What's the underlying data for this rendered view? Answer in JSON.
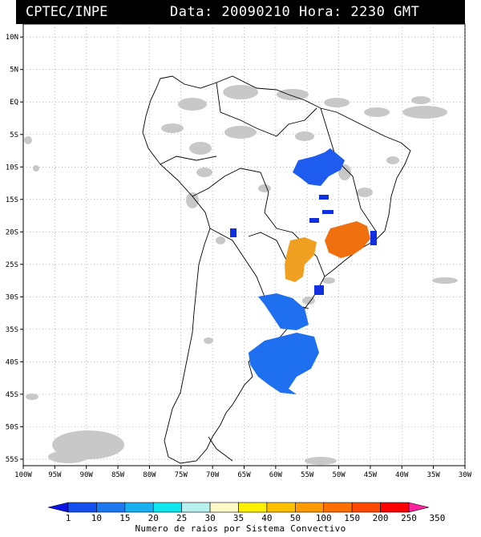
{
  "header": {
    "source": "CPTEC/INPE",
    "datetime": "Data: 20090210 Hora: 2230 GMT"
  },
  "map": {
    "lat_labels": [
      "10N",
      "5N",
      "EQ",
      "5S",
      "10S",
      "15S",
      "20S",
      "25S",
      "30S",
      "35S",
      "40S",
      "45S",
      "50S",
      "55S"
    ],
    "lon_labels": [
      "100W",
      "95W",
      "90W",
      "85W",
      "80W",
      "75W",
      "70W",
      "65W",
      "60W",
      "55W",
      "50W",
      "45W",
      "40W",
      "35W",
      "30W"
    ],
    "lon_range": [
      -100,
      -30
    ],
    "lat_range": [
      -56,
      12
    ],
    "gridlines": true,
    "cloud_color": "#c8c8c8",
    "border_color": "#000000"
  },
  "storm_cells": [
    {
      "region": "central-brazil-north",
      "category": "10",
      "color": "#1e5cf0"
    },
    {
      "region": "central-brazil-strips",
      "category": "1",
      "color": "#1030e0"
    },
    {
      "region": "paraguay-parana",
      "category": "150",
      "color": "#f0a020"
    },
    {
      "region": "sao-paulo-rio",
      "category": "200",
      "color": "#f07010"
    },
    {
      "region": "uruguay-argentina",
      "category": "10",
      "color": "#1e70f0"
    }
  ],
  "colorbar": {
    "title": "Numero de raios por Sistema Convectivo",
    "labels": [
      "1",
      "10",
      "15",
      "20",
      "25",
      "30",
      "35",
      "40",
      "50",
      "100",
      "150",
      "200",
      "250",
      "350"
    ],
    "colors": [
      "#0a14e6",
      "#1450f0",
      "#1e78f0",
      "#18b0f0",
      "#10e6f0",
      "#b8f0f0",
      "#fffac8",
      "#fff000",
      "#ffc000",
      "#ff9a00",
      "#ff7000",
      "#ff4800",
      "#ff0000",
      "#ff20a0"
    ]
  }
}
